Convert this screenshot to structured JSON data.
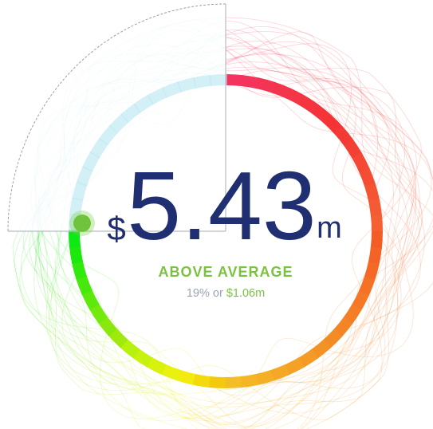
{
  "widget": {
    "currency": "$",
    "amount": "5.43",
    "unit": "m",
    "status": "ABOVE AVERAGE",
    "detail": {
      "percent": "19%",
      "joiner": "or",
      "difference": "$1.06m"
    }
  }
}
